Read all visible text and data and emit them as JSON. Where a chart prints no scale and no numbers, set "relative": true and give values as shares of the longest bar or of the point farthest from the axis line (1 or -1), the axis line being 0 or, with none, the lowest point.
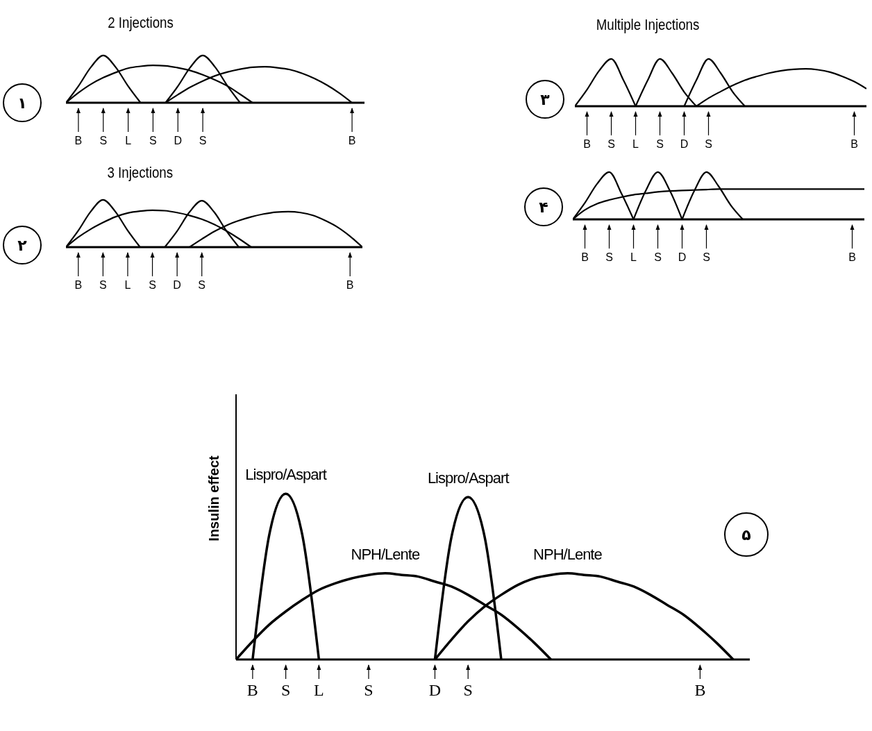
{
  "chart_data": [
    {
      "type": "line",
      "title": "2 Injections",
      "relative": true,
      "marker": "none",
      "annotations": [
        "۱"
      ],
      "categories": [
        null,
        "B",
        null,
        "S",
        null,
        "L",
        null,
        "S",
        null,
        "D",
        null,
        "S",
        null,
        null,
        null,
        null,
        null,
        null,
        null,
        null,
        null,
        null,
        null,
        "B",
        null
      ],
      "series": [
        {
          "color": "#000000",
          "values": [
            0,
            0.35,
            0.75,
            1,
            0.75,
            0.35,
            0,
            null,
            null,
            null,
            null,
            null,
            null,
            null,
            null,
            null,
            null,
            null,
            null,
            null,
            null,
            null,
            null,
            null,
            null
          ]
        },
        {
          "color": "#000000",
          "values": [
            0,
            0.21,
            0.39,
            0.53,
            0.64,
            0.73,
            0.77,
            0.79,
            0.78,
            0.74,
            0.68,
            0.59,
            0.48,
            0.35,
            0.18,
            0,
            null,
            null,
            null,
            null,
            null,
            null,
            null,
            null,
            null
          ]
        },
        {
          "color": "#000000",
          "values": [
            null,
            null,
            null,
            null,
            null,
            null,
            null,
            null,
            0,
            0.35,
            0.75,
            1,
            0.75,
            0.35,
            0,
            null,
            null,
            null,
            null,
            null,
            null,
            null,
            null,
            null,
            null
          ]
        },
        {
          "color": "#000000",
          "values": [
            null,
            null,
            null,
            null,
            null,
            null,
            null,
            null,
            0,
            0.17,
            0.33,
            0.46,
            0.57,
            0.65,
            0.71,
            0.75,
            0.76,
            0.74,
            0.7,
            0.62,
            0.51,
            0.37,
            0.2,
            0,
            null
          ]
        }
      ]
    },
    {
      "type": "line",
      "title": "3 Injections",
      "relative": true,
      "marker": "none",
      "annotations": [
        "۲"
      ],
      "categories": [
        null,
        "B",
        null,
        "S",
        null,
        "L",
        null,
        "S",
        null,
        "D",
        null,
        "S",
        null,
        null,
        null,
        null,
        null,
        null,
        null,
        null,
        null,
        null,
        null,
        "B",
        null
      ],
      "series": [
        {
          "color": "#000000",
          "values": [
            0,
            0.35,
            0.75,
            1,
            0.75,
            0.35,
            0,
            null,
            null,
            null,
            null,
            null,
            null,
            null,
            null,
            null,
            null,
            null,
            null,
            null,
            null,
            null,
            null,
            null,
            null
          ]
        },
        {
          "color": "#000000",
          "values": [
            0,
            0.21,
            0.38,
            0.52,
            0.64,
            0.72,
            0.76,
            0.78,
            0.77,
            0.73,
            0.67,
            0.59,
            0.48,
            0.34,
            0.18,
            0,
            null,
            null,
            null,
            null,
            null,
            null,
            null,
            null,
            null
          ]
        },
        {
          "color": "#000000",
          "values": [
            null,
            null,
            null,
            null,
            null,
            null,
            null,
            null,
            0,
            0.34,
            0.74,
            0.98,
            0.74,
            0.34,
            0,
            null,
            null,
            null,
            null,
            null,
            null,
            null,
            null,
            null,
            null
          ]
        },
        {
          "color": "#000000",
          "values": [
            null,
            null,
            null,
            null,
            null,
            null,
            null,
            null,
            null,
            null,
            0,
            0.17,
            0.33,
            0.46,
            0.56,
            0.64,
            0.7,
            0.74,
            0.75,
            0.73,
            0.67,
            0.56,
            0.42,
            0.23,
            0
          ]
        }
      ]
    },
    {
      "type": "line",
      "title": "Multiple Injections",
      "relative": true,
      "marker": "none",
      "annotations": [
        "۳"
      ],
      "categories": [
        null,
        "B",
        null,
        "S",
        null,
        "L",
        null,
        "S",
        null,
        "D",
        null,
        "S",
        null,
        null,
        null,
        null,
        null,
        null,
        null,
        null,
        null,
        null,
        null,
        "B",
        null
      ],
      "series": [
        {
          "color": "#000000",
          "values": [
            0,
            0.35,
            0.75,
            1,
            0.55,
            0,
            null,
            null,
            null,
            null,
            null,
            null,
            null,
            null,
            null,
            null,
            null,
            null,
            null,
            null,
            null,
            null,
            null,
            null,
            null
          ]
        },
        {
          "color": "#000000",
          "values": [
            null,
            null,
            null,
            null,
            null,
            0,
            0.55,
            1,
            0.7,
            0.3,
            0,
            null,
            null,
            null,
            null,
            null,
            null,
            null,
            null,
            null,
            null,
            null,
            null,
            null,
            null
          ]
        },
        {
          "color": "#000000",
          "values": [
            null,
            null,
            null,
            null,
            null,
            null,
            null,
            null,
            null,
            0,
            0.55,
            1,
            0.7,
            0.3,
            0,
            null,
            null,
            null,
            null,
            null,
            null,
            null,
            null,
            null,
            null
          ]
        },
        {
          "color": "#000000",
          "values": [
            null,
            null,
            null,
            null,
            null,
            null,
            null,
            null,
            null,
            null,
            0,
            0.17,
            0.31,
            0.44,
            0.55,
            0.63,
            0.7,
            0.75,
            0.78,
            0.79,
            0.77,
            0.72,
            0.63,
            0.52,
            0.37
          ]
        }
      ]
    },
    {
      "type": "line",
      "relative": true,
      "marker": "none",
      "annotations": [
        "۴"
      ],
      "categories": [
        null,
        "B",
        null,
        "S",
        null,
        "L",
        null,
        "S",
        null,
        "D",
        null,
        "S",
        null,
        null,
        null,
        null,
        null,
        null,
        null,
        null,
        null,
        null,
        null,
        "B",
        null
      ],
      "series": [
        {
          "color": "#000000",
          "values": [
            0,
            0.35,
            0.75,
            1,
            0.55,
            0,
            null,
            null,
            null,
            null,
            null,
            null,
            null,
            null,
            null,
            null,
            null,
            null,
            null,
            null,
            null,
            null,
            null,
            null,
            null
          ]
        },
        {
          "color": "#000000",
          "values": [
            null,
            null,
            null,
            null,
            null,
            0,
            0.6,
            1,
            0.6,
            0,
            null,
            null,
            null,
            null,
            null,
            null,
            null,
            null,
            null,
            null,
            null,
            null,
            null,
            null,
            null
          ]
        },
        {
          "color": "#000000",
          "values": [
            null,
            null,
            null,
            null,
            null,
            null,
            null,
            null,
            null,
            0,
            0.6,
            1,
            0.7,
            0.3,
            0,
            null,
            null,
            null,
            null,
            null,
            null,
            null,
            null,
            null,
            null
          ]
        },
        {
          "color": "#000000",
          "values": [
            0,
            0.2,
            0.33,
            0.41,
            0.47,
            0.52,
            0.55,
            0.58,
            0.6,
            0.61,
            0.62,
            0.63,
            0.64,
            0.64,
            0.64,
            0.64,
            0.64,
            0.64,
            0.64,
            0.64,
            0.64,
            0.64,
            0.64,
            0.64,
            0.64
          ]
        }
      ]
    },
    {
      "type": "line",
      "ylabel": "Insulin effect",
      "relative": true,
      "marker": "none",
      "annotations": [
        "۵"
      ],
      "categories": [
        null,
        "B",
        null,
        "S",
        null,
        "L",
        null,
        null,
        "S",
        null,
        null,
        null,
        "D",
        null,
        "S",
        null,
        null,
        null,
        null,
        null,
        null,
        null,
        null,
        null,
        null,
        null,
        null,
        null,
        "B",
        null,
        null,
        null
      ],
      "series": [
        {
          "name": "Lispro/Aspart",
          "color": "#000000",
          "values": [
            null,
            0,
            0.75,
            1,
            0.75,
            0,
            null,
            null,
            null,
            null,
            null,
            null,
            null,
            null,
            null,
            null,
            null,
            null,
            null,
            null,
            null,
            null,
            null,
            null,
            null,
            null,
            null,
            null,
            null,
            null,
            null,
            null
          ]
        },
        {
          "name": "NPH/Lente",
          "color": "#000000",
          "values": [
            0,
            0.11,
            0.21,
            0.29,
            0.36,
            0.42,
            0.46,
            0.49,
            0.51,
            0.52,
            0.51,
            0.5,
            0.47,
            0.44,
            0.39,
            0.33,
            0.27,
            0.19,
            0.1,
            0,
            null,
            null,
            null,
            null,
            null,
            null,
            null,
            null,
            null,
            null,
            null,
            null
          ]
        },
        {
          "name": "Lispro/Aspart",
          "color": "#000000",
          "values": [
            null,
            null,
            null,
            null,
            null,
            null,
            null,
            null,
            null,
            null,
            null,
            null,
            0,
            0.74,
            0.98,
            0.74,
            0,
            null,
            null,
            null,
            null,
            null,
            null,
            null,
            null,
            null,
            null,
            null,
            null,
            null,
            null,
            null
          ]
        },
        {
          "name": "NPH/Lente",
          "color": "#000000",
          "values": [
            null,
            null,
            null,
            null,
            null,
            null,
            null,
            null,
            null,
            null,
            null,
            null,
            0,
            0.12,
            0.23,
            0.32,
            0.39,
            0.45,
            0.49,
            0.51,
            0.52,
            0.51,
            0.5,
            0.47,
            0.44,
            0.39,
            0.33,
            0.27,
            0.19,
            0.1,
            0,
            null
          ]
        }
      ]
    }
  ]
}
